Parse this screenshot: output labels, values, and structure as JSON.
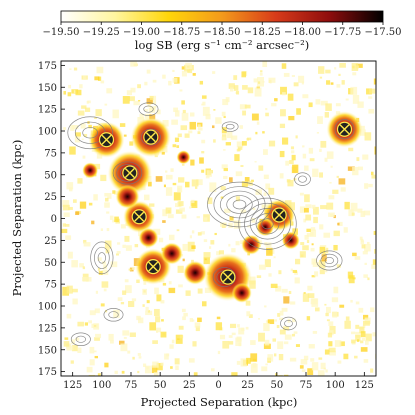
{
  "chart_data": {
    "type": "heatmap",
    "colorbar": {
      "label": "log SB (erg s⁻¹ cm⁻² arcsec⁻²)",
      "ticks": [
        "−19.50",
        "−19.25",
        "−19.00",
        "−18.75",
        "−18.50",
        "−18.25",
        "−18.00",
        "−17.75",
        "−17.50"
      ],
      "range": [
        -19.5,
        -17.5
      ],
      "colormap": [
        "#ffffff",
        "#fff6a0",
        "#ffd60a",
        "#f39a1b",
        "#d83b1a",
        "#8e0d0d",
        "#000000"
      ]
    },
    "xlabel": "Projected Separation (kpc)",
    "ylabel": "Projected Separation (kpc)",
    "xticks": [
      "125",
      "100",
      "75",
      "50",
      "25",
      "0",
      "25",
      "50",
      "75",
      "100",
      "125"
    ],
    "yticks": [
      "175",
      "150",
      "125",
      "100",
      "75",
      "50",
      "25",
      "0",
      "25",
      "50",
      "75",
      "100",
      "125",
      "150",
      "175"
    ],
    "xlim": [
      -135,
      135
    ],
    "ylim": [
      -180,
      180
    ],
    "grid": false,
    "sources": [
      {
        "x": 96,
        "y": 90
      },
      {
        "x": 58,
        "y": 93
      },
      {
        "x": 76,
        "y": 52
      },
      {
        "x": 68,
        "y": 2
      },
      {
        "x": 56,
        "y": -55
      },
      {
        "x": -8,
        "y": -67
      },
      {
        "x": -52,
        "y": 4
      },
      {
        "x": -108,
        "y": 102
      }
    ]
  }
}
